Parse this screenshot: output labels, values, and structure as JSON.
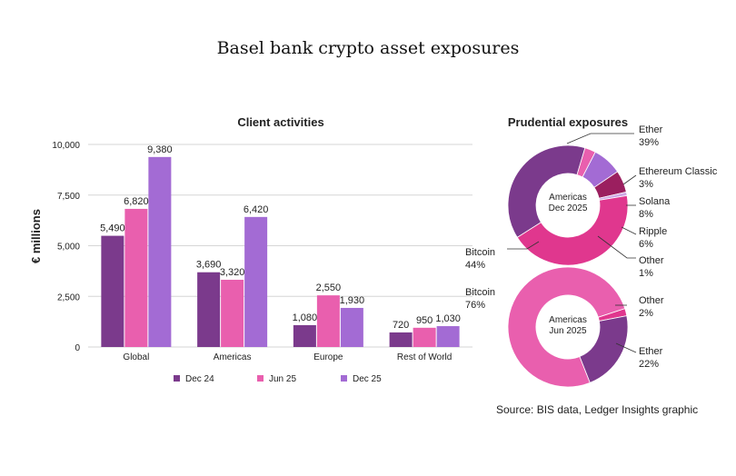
{
  "title": "Basel bank crypto asset exposures",
  "source": "Source: BIS data, Ledger Insights  graphic",
  "chart_data": [
    {
      "type": "bar",
      "title": "Client activities",
      "ylabel": "€ millions",
      "xlabel": "",
      "ylim": [
        0,
        10000
      ],
      "yticks": [
        "0",
        "2,500",
        "5,000",
        "7,500",
        "10,000"
      ],
      "grid": true,
      "legend_position": "bottom",
      "categories": [
        "Global",
        "Americas",
        "Europe",
        "Rest of World"
      ],
      "series": [
        {
          "name": "Dec 24",
          "color": "#7b3a8c",
          "values": [
            5490,
            3690,
            1080,
            720
          ],
          "labels": [
            "5,490",
            "3,690",
            "1,080",
            "720"
          ]
        },
        {
          "name": "Jun 25",
          "color": "#e95fae",
          "values": [
            6820,
            3320,
            2550,
            950
          ],
          "labels": [
            "6,820",
            "3,320",
            "2,550",
            "950"
          ]
        },
        {
          "name": "Dec 25",
          "color": "#a36bd4",
          "values": [
            9380,
            6420,
            1930,
            1030
          ],
          "labels": [
            "9,380",
            "6,420",
            "1,930",
            "1,030"
          ]
        }
      ]
    },
    {
      "type": "pie",
      "title": "Prudential exposures",
      "center_label": [
        "Americas",
        "Dec 2025"
      ],
      "slices": [
        {
          "name": "Ether",
          "value": 39,
          "label": "39%",
          "color": "#7b3a8c"
        },
        {
          "name": "Ethereum Classic",
          "value": 3,
          "label": "3%",
          "color": "#e95fae"
        },
        {
          "name": "Solana",
          "value": 8,
          "label": "8%",
          "color": "#a36bd4"
        },
        {
          "name": "Ripple",
          "value": 6,
          "label": "6%",
          "color": "#9b1f5f"
        },
        {
          "name": "Other",
          "value": 1,
          "label": "1%",
          "color": "#cfa9e6"
        },
        {
          "name": "Bitcoin",
          "value": 44,
          "label": "44%",
          "color": "#e0378e"
        }
      ]
    },
    {
      "type": "pie",
      "center_label": [
        "Americas",
        "Jun 2025"
      ],
      "slices": [
        {
          "name": "Other",
          "value": 2,
          "label": "2%",
          "color": "#e0378e"
        },
        {
          "name": "Ether",
          "value": 22,
          "label": "22%",
          "color": "#7b3a8c"
        },
        {
          "name": "Bitcoin",
          "value": 76,
          "label": "76%",
          "color": "#e95fae"
        }
      ]
    }
  ]
}
